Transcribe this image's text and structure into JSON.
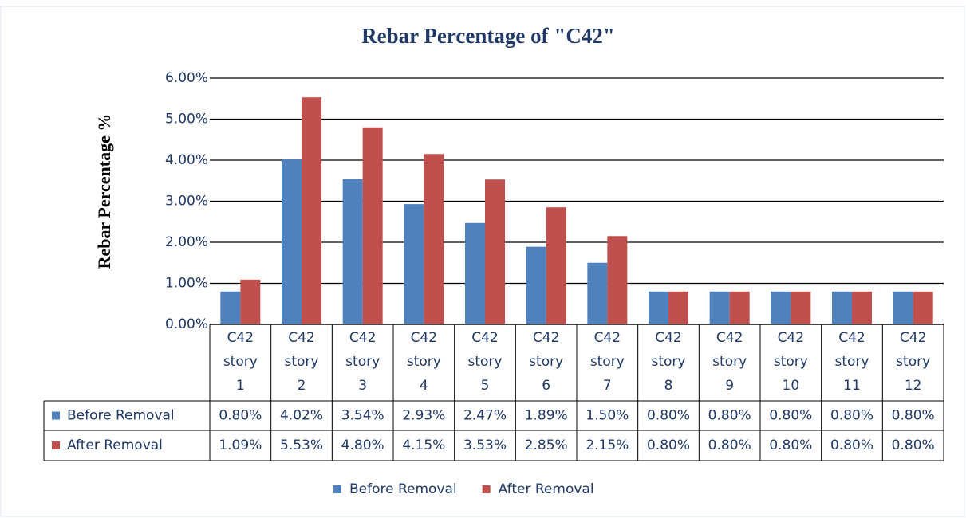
{
  "chart_data": {
    "type": "bar",
    "title": "Rebar Percentage of \"C42\"",
    "y_label": "Rebar Percentage %",
    "categories": [
      "C42 story 1",
      "C42 story 2",
      "C42 story 3",
      "C42 story 4",
      "C42 story 5",
      "C42 story 6",
      "C42 story 7",
      "C42 story 8",
      "C42 story 9",
      "C42 story 10",
      "C42 story 11",
      "C42 story 12"
    ],
    "series": [
      {
        "name": "Before Removal",
        "color": "#4f81bd",
        "values": [
          0.8,
          4.02,
          3.54,
          2.93,
          2.47,
          1.89,
          1.5,
          0.8,
          0.8,
          0.8,
          0.8,
          0.8
        ],
        "value_labels": [
          "0.80%",
          "4.02%",
          "3.54%",
          "2.93%",
          "2.47%",
          "1.89%",
          "1.50%",
          "0.80%",
          "0.80%",
          "0.80%",
          "0.80%",
          "0.80%"
        ]
      },
      {
        "name": "After Removal",
        "color": "#c0504d",
        "values": [
          1.09,
          5.53,
          4.8,
          4.15,
          3.53,
          2.85,
          2.15,
          0.8,
          0.8,
          0.8,
          0.8,
          0.8
        ],
        "value_labels": [
          "1.09%",
          "5.53%",
          "4.80%",
          "4.15%",
          "3.53%",
          "2.85%",
          "2.15%",
          "0.80%",
          "0.80%",
          "0.80%",
          "0.80%",
          "0.80%"
        ]
      }
    ],
    "ylim": [
      0,
      6
    ],
    "yticks": [
      {
        "value": 0,
        "label": "0.00%"
      },
      {
        "value": 1,
        "label": "1.00%"
      },
      {
        "value": 2,
        "label": "2.00%"
      },
      {
        "value": 3,
        "label": "3.00%"
      },
      {
        "value": 4,
        "label": "4.00%"
      },
      {
        "value": 5,
        "label": "5.00%"
      },
      {
        "value": 6,
        "label": "6.00%"
      }
    ],
    "grid": true,
    "legend": "bottom",
    "data_table": true
  }
}
